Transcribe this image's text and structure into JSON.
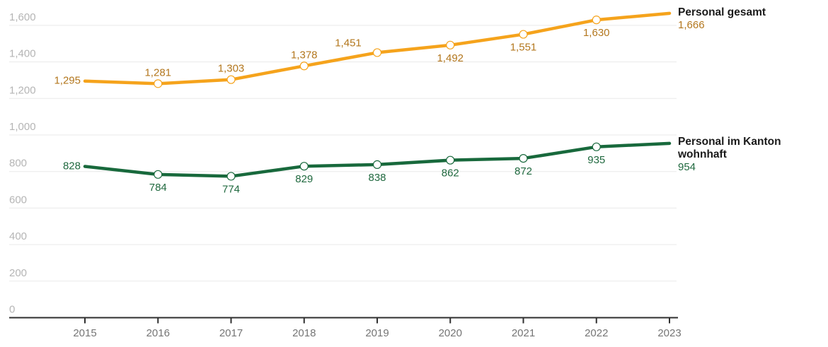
{
  "chart_data": {
    "type": "line",
    "x": [
      2015,
      2016,
      2017,
      2018,
      2019,
      2020,
      2021,
      2022,
      2023
    ],
    "series": [
      {
        "name": "Personal gesamt",
        "values": [
          1295,
          1281,
          1303,
          1378,
          1451,
          1492,
          1551,
          1630,
          1666
        ],
        "labels": [
          "1,295",
          "1,281",
          "1,303",
          "1,378",
          "1,451",
          "1,492",
          "1,551",
          "1,630",
          "1,666"
        ],
        "color": "#F5A31C",
        "label_color": "#B3771E",
        "label_placement": [
          "left",
          "above",
          "above",
          "above",
          "above-left",
          "below",
          "below",
          "below",
          "legend"
        ]
      },
      {
        "name": "Personal im Kanton wohnhaft",
        "values": [
          828,
          784,
          774,
          829,
          838,
          862,
          872,
          935,
          954
        ],
        "labels": [
          "828",
          "784",
          "774",
          "829",
          "838",
          "862",
          "872",
          "935",
          "954"
        ],
        "color": "#18693C",
        "label_color": "#20693F",
        "label_placement": [
          "left",
          "below",
          "below",
          "below",
          "below",
          "below",
          "below",
          "below",
          "legend"
        ]
      }
    ],
    "ylim": [
      0,
      1600
    ],
    "yticks": [
      0,
      200,
      400,
      600,
      800,
      1000,
      1200,
      1400,
      1600
    ],
    "ytick_labels": [
      "0",
      "200",
      "400",
      "600",
      "800",
      "1,000",
      "1,200",
      "1,400",
      "1,600"
    ],
    "xtick_labels": [
      "2015",
      "2016",
      "2017",
      "2018",
      "2019",
      "2020",
      "2021",
      "2022",
      "2023"
    ],
    "grid": true,
    "legend_position": "right",
    "colors": {
      "background": "#ffffff",
      "gridline": "#e9e9e9",
      "axis_line": "#2f2f2f",
      "ytick_text": "#b5b5b5",
      "xtick_text": "#757575",
      "legend_text": "#1a1a1a"
    }
  }
}
